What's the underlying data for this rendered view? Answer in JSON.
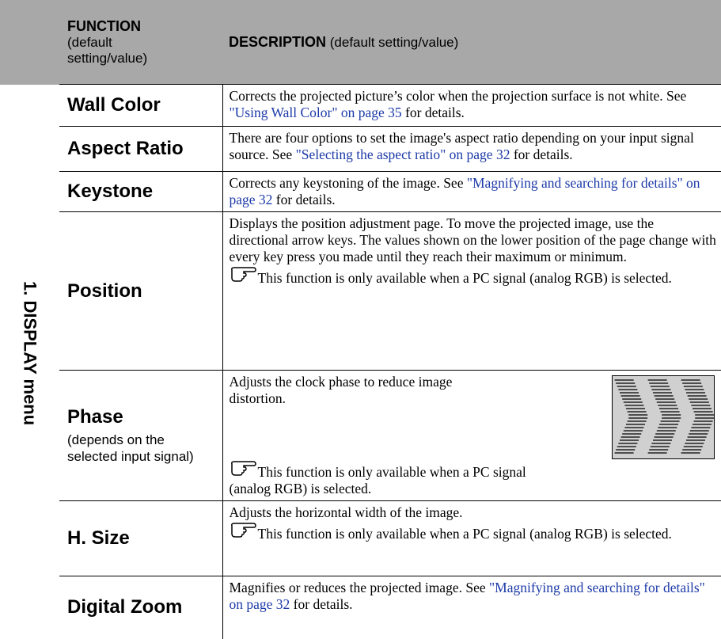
{
  "header": {
    "function_title": "FUNCTION",
    "function_subtitle": "(default setting/value)",
    "description_title": "DESCRIPTION",
    "description_subtitle": "(default setting/value)"
  },
  "section_label": "1. DISPLAY menu",
  "rows": [
    {
      "name": "Wall Color",
      "description": {
        "text": "Corrects the projected picture’s color when the projection surface is not white. See ",
        "link": "\"Using Wall Color\" on page 35",
        "after": " for details."
      }
    },
    {
      "name": "Aspect Ratio",
      "description": {
        "text": "There are four options to set the image's aspect ratio depending on your input signal source. See ",
        "link": "\"Selecting the aspect ratio\" on page 32",
        "after": " for details."
      }
    },
    {
      "name": "Keystone",
      "description": {
        "text": "Corrects any keystoning of the image. See ",
        "link": "\"Magnifying and searching for details\" on page 32",
        "after": " for details."
      }
    },
    {
      "name": "Position",
      "description": {
        "text": "Displays the position adjustment page. To move the projected image, use the directional arrow keys. The values shown on the lower position of the page change with every key press you made until they reach their maximum or minimum.",
        "note": "This function is only available when a PC signal (analog RGB) is selected."
      }
    },
    {
      "name": "Phase",
      "name_note": "(depends on the selected input signal)",
      "description": {
        "text": "Adjusts the clock phase to reduce image distortion.",
        "note": "This function is only available when a PC signal (analog RGB) is selected."
      }
    },
    {
      "name": "H. Size",
      "description": {
        "text": "Adjusts the horizontal width of the image.",
        "note": "This function is only available when a PC signal (analog RGB) is selected."
      }
    },
    {
      "name": "Digital Zoom",
      "description": {
        "text": "Magnifies or reduces the projected image. See ",
        "link": "\"Magnifying and searching for details\" on page 32",
        "after": " for details."
      }
    }
  ]
}
